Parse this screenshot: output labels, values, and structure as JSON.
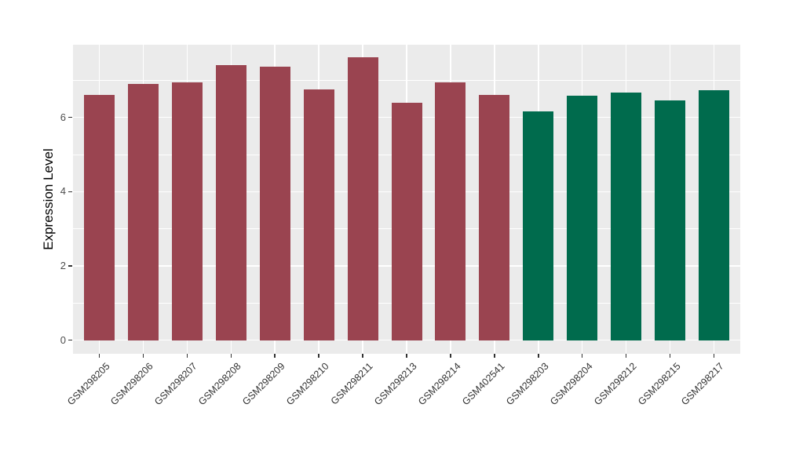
{
  "figure": {
    "background_color": "#FFFFFF",
    "panel_background_color": "#EBEBEB",
    "gridline_color": "#FFFFFF",
    "tick_mark_color": "#333333",
    "axis_text_color": "#4D4D4D",
    "group_colors": {
      "group_a": "#9A4450",
      "group_b": "#006B4D"
    }
  },
  "chart_data": {
    "type": "bar",
    "title": "",
    "xlabel": "",
    "ylabel": "Expression Level",
    "ylim": [
      0,
      8
    ],
    "yticks": [
      0,
      2,
      4,
      6
    ],
    "minor_yticks": [
      1,
      3,
      5,
      7
    ],
    "grid": "on",
    "legend": "none",
    "x_tick_rotation_deg": 45,
    "categories": [
      "GSM298205",
      "GSM298206",
      "GSM298207",
      "GSM298208",
      "GSM298209",
      "GSM298210",
      "GSM298211",
      "GSM298213",
      "GSM298214",
      "GSM402541",
      "GSM298203",
      "GSM298204",
      "GSM298212",
      "GSM298215",
      "GSM298217"
    ],
    "values": [
      6.6,
      6.9,
      6.94,
      7.4,
      7.37,
      6.75,
      7.62,
      6.4,
      6.95,
      6.6,
      6.17,
      6.58,
      6.66,
      6.46,
      6.74
    ],
    "bar_colors": [
      "#9A4450",
      "#9A4450",
      "#9A4450",
      "#9A4450",
      "#9A4450",
      "#9A4450",
      "#9A4450",
      "#9A4450",
      "#9A4450",
      "#9A4450",
      "#006B4D",
      "#006B4D",
      "#006B4D",
      "#006B4D",
      "#006B4D"
    ]
  }
}
